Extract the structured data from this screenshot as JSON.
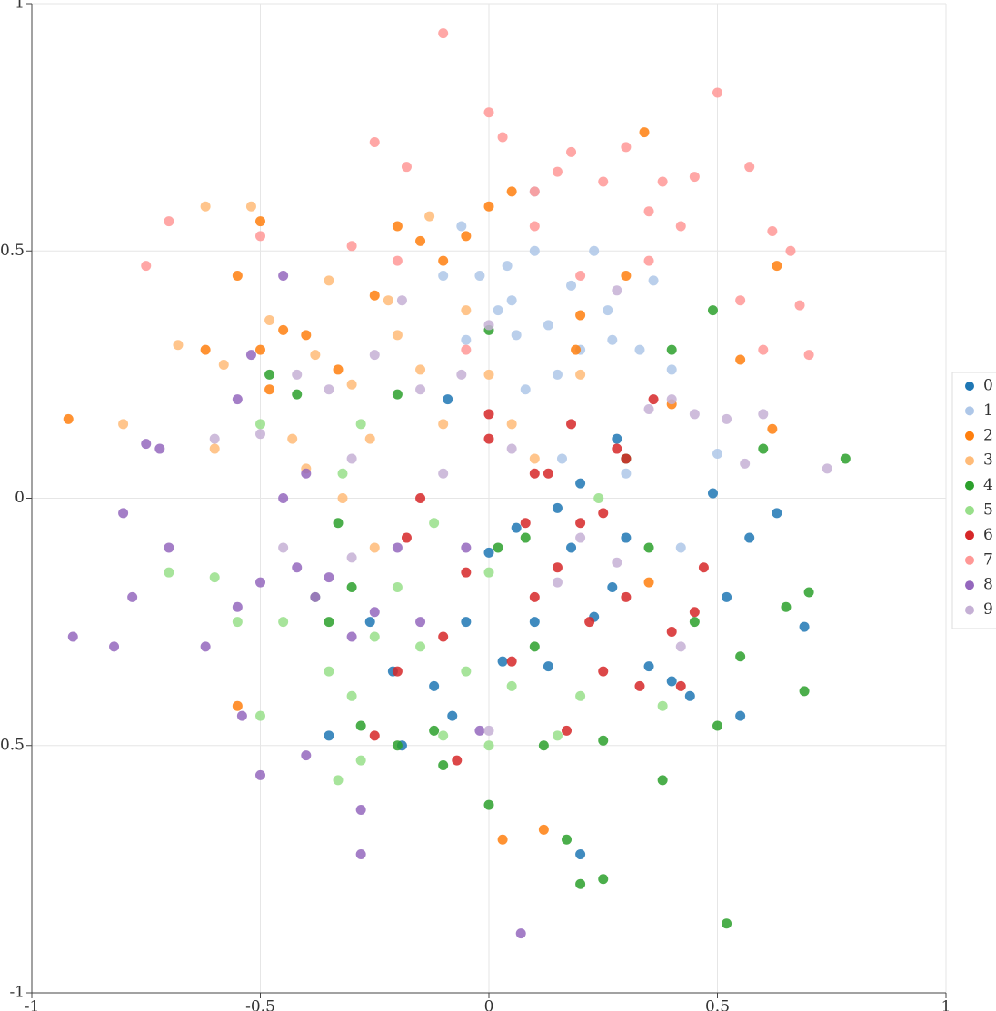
{
  "chart_data": {
    "type": "scatter",
    "xlim": [
      -1,
      1
    ],
    "ylim": [
      -1,
      1
    ],
    "xticks": [
      -1,
      -0.5,
      0,
      0.5,
      1
    ],
    "yticks": [
      -1,
      -0.5,
      0,
      0.5,
      1
    ],
    "grid": true,
    "legend": "right",
    "series": [
      {
        "name": "0",
        "color": "#1f77b4",
        "x": [
          -0.35,
          -0.26,
          -0.21,
          -0.19,
          -0.12,
          -0.08,
          -0.05,
          0.0,
          0.03,
          0.06,
          0.1,
          0.13,
          0.15,
          0.18,
          0.2,
          0.23,
          0.27,
          0.3,
          0.35,
          0.4,
          0.44,
          0.49,
          0.52,
          0.55,
          0.57,
          0.63,
          0.69,
          0.2,
          -0.09,
          0.28
        ],
        "values": [
          -0.48,
          -0.25,
          -0.35,
          -0.5,
          -0.38,
          -0.44,
          -0.25,
          -0.11,
          -0.33,
          -0.06,
          -0.25,
          -0.34,
          -0.02,
          -0.1,
          0.03,
          -0.24,
          -0.18,
          -0.08,
          -0.34,
          -0.37,
          -0.4,
          0.01,
          -0.2,
          -0.44,
          -0.08,
          -0.03,
          -0.26,
          -0.72,
          0.2,
          0.12
        ]
      },
      {
        "name": "1",
        "color": "#aec7e8",
        "x": [
          -0.02,
          0.05,
          0.1,
          0.13,
          0.18,
          0.2,
          0.06,
          0.02,
          -0.05,
          0.1,
          0.23,
          0.27,
          0.33,
          0.36,
          0.4,
          0.08,
          -0.1,
          -0.06,
          0.15,
          0.3,
          0.42,
          0.5,
          0.16,
          0.04,
          0.26
        ],
        "values": [
          0.45,
          0.4,
          0.5,
          0.35,
          0.43,
          0.3,
          0.33,
          0.38,
          0.32,
          0.62,
          0.5,
          0.32,
          0.3,
          0.44,
          0.26,
          0.22,
          0.45,
          0.55,
          0.25,
          0.05,
          -0.1,
          0.09,
          0.08,
          0.47,
          0.38
        ]
      },
      {
        "name": "2",
        "color": "#ff7f0e",
        "x": [
          -0.92,
          -0.55,
          -0.5,
          -0.45,
          -0.5,
          -0.4,
          -0.33,
          -0.25,
          -0.2,
          -0.15,
          -0.1,
          -0.05,
          0.0,
          0.05,
          0.2,
          0.3,
          0.34,
          0.4,
          0.55,
          0.63,
          -0.62,
          -0.55,
          0.03,
          0.12,
          -0.48,
          0.19,
          0.62,
          0.35
        ],
        "values": [
          0.16,
          0.45,
          0.56,
          0.34,
          0.3,
          0.33,
          0.26,
          0.41,
          0.55,
          0.52,
          0.48,
          0.53,
          0.59,
          0.62,
          0.37,
          0.45,
          0.74,
          0.19,
          0.28,
          0.47,
          0.3,
          -0.42,
          -0.69,
          -0.67,
          0.22,
          0.3,
          0.14,
          -0.17
        ]
      },
      {
        "name": "3",
        "color": "#ffbb78",
        "x": [
          -0.8,
          -0.68,
          -0.62,
          -0.58,
          -0.52,
          -0.48,
          -0.43,
          -0.35,
          -0.3,
          -0.26,
          -0.2,
          -0.15,
          -0.1,
          -0.05,
          0.0,
          0.05,
          -0.6,
          -0.38,
          -0.22,
          -0.13,
          -0.4,
          -0.25,
          0.1,
          0.2,
          -0.32
        ],
        "values": [
          0.15,
          0.31,
          0.59,
          0.27,
          0.59,
          0.36,
          0.12,
          0.44,
          0.23,
          0.12,
          0.33,
          0.26,
          0.15,
          0.38,
          0.25,
          0.15,
          0.1,
          0.29,
          0.4,
          0.57,
          0.06,
          -0.1,
          0.08,
          0.25,
          0.0
        ]
      },
      {
        "name": "4",
        "color": "#2ca02c",
        "x": [
          -0.48,
          -0.42,
          -0.33,
          -0.35,
          -0.3,
          -0.28,
          -0.2,
          -0.12,
          -0.1,
          0.0,
          0.02,
          0.08,
          0.1,
          0.12,
          0.17,
          0.2,
          0.25,
          0.25,
          0.3,
          0.35,
          0.38,
          0.4,
          0.45,
          0.5,
          0.52,
          0.55,
          0.6,
          0.65,
          0.7,
          0.78,
          0.69,
          0.49,
          -0.2,
          0.0
        ],
        "values": [
          0.25,
          0.21,
          -0.05,
          -0.25,
          -0.18,
          -0.46,
          -0.5,
          -0.47,
          -0.54,
          -0.62,
          -0.1,
          -0.08,
          -0.3,
          -0.5,
          -0.69,
          -0.78,
          -0.77,
          -0.49,
          0.08,
          -0.1,
          -0.57,
          0.3,
          -0.25,
          -0.46,
          -0.86,
          -0.32,
          0.1,
          -0.22,
          -0.19,
          0.08,
          -0.39,
          0.38,
          0.21,
          0.34
        ]
      },
      {
        "name": "5",
        "color": "#98df8a",
        "x": [
          -0.7,
          -0.6,
          -0.55,
          -0.5,
          -0.45,
          -0.38,
          -0.35,
          -0.33,
          -0.3,
          -0.28,
          -0.25,
          -0.2,
          -0.15,
          -0.1,
          -0.05,
          0.0,
          0.0,
          0.05,
          0.15,
          0.2,
          -0.32,
          -0.28,
          -0.12,
          0.24,
          0.38,
          -0.5
        ],
        "values": [
          -0.15,
          -0.16,
          -0.25,
          0.15,
          -0.25,
          -0.2,
          -0.35,
          -0.57,
          -0.4,
          -0.53,
          -0.28,
          -0.18,
          -0.3,
          -0.48,
          -0.35,
          -0.15,
          -0.5,
          -0.38,
          -0.48,
          -0.4,
          0.05,
          0.15,
          -0.05,
          0.0,
          -0.42,
          -0.44
        ]
      },
      {
        "name": "6",
        "color": "#d62728",
        "x": [
          0.0,
          0.08,
          0.1,
          0.13,
          0.15,
          0.18,
          0.2,
          0.22,
          0.25,
          0.28,
          0.3,
          0.33,
          0.36,
          0.4,
          0.42,
          0.45,
          0.47,
          0.05,
          0.0,
          -0.05,
          -0.1,
          -0.15,
          -0.18,
          -0.2,
          -0.25,
          -0.07,
          0.17,
          0.3,
          0.25,
          0.1
        ],
        "values": [
          0.17,
          -0.05,
          -0.2,
          0.05,
          -0.14,
          0.15,
          -0.05,
          -0.25,
          -0.35,
          0.1,
          -0.2,
          -0.38,
          0.2,
          -0.27,
          -0.38,
          -0.23,
          -0.14,
          -0.33,
          0.12,
          -0.15,
          -0.28,
          0.0,
          -0.08,
          -0.35,
          -0.48,
          -0.53,
          -0.47,
          0.08,
          -0.03,
          0.05
        ]
      },
      {
        "name": "7",
        "color": "#ff9896",
        "x": [
          -0.75,
          -0.7,
          -0.5,
          -0.3,
          -0.25,
          -0.18,
          -0.2,
          -0.1,
          0.0,
          0.03,
          0.1,
          0.15,
          0.18,
          0.25,
          0.3,
          0.35,
          0.38,
          0.42,
          0.45,
          0.5,
          0.55,
          0.57,
          0.6,
          0.62,
          0.66,
          0.68,
          0.7,
          0.2,
          0.1,
          -0.05,
          0.35
        ],
        "values": [
          0.47,
          0.56,
          0.53,
          0.51,
          0.72,
          0.67,
          0.48,
          0.94,
          0.78,
          0.73,
          0.62,
          0.66,
          0.7,
          0.64,
          0.71,
          0.58,
          0.64,
          0.55,
          0.65,
          0.82,
          0.4,
          0.67,
          0.3,
          0.54,
          0.5,
          0.39,
          0.29,
          0.45,
          0.55,
          0.3,
          0.48
        ]
      },
      {
        "name": "8",
        "color": "#9467bd",
        "x": [
          -0.91,
          -0.82,
          -0.8,
          -0.75,
          -0.72,
          -0.78,
          -0.7,
          -0.62,
          -0.55,
          -0.5,
          -0.5,
          -0.45,
          -0.42,
          -0.4,
          -0.38,
          -0.35,
          -0.3,
          -0.28,
          -0.28,
          -0.25,
          -0.2,
          -0.15,
          -0.05,
          0.07,
          -0.55,
          -0.52,
          -0.45,
          -0.4,
          -0.54,
          -0.02
        ],
        "values": [
          -0.28,
          -0.3,
          -0.03,
          0.11,
          0.1,
          -0.2,
          -0.1,
          -0.3,
          -0.22,
          -0.17,
          -0.56,
          0.0,
          -0.14,
          0.05,
          -0.2,
          -0.16,
          -0.28,
          -0.63,
          -0.72,
          -0.23,
          -0.1,
          -0.25,
          -0.1,
          -0.88,
          0.2,
          0.29,
          0.45,
          -0.52,
          -0.44,
          -0.47
        ]
      },
      {
        "name": "9",
        "color": "#c5b0d5",
        "x": [
          -0.6,
          -0.5,
          -0.42,
          -0.35,
          -0.3,
          -0.25,
          -0.19,
          -0.15,
          -0.1,
          -0.06,
          0.0,
          0.05,
          0.15,
          0.2,
          0.28,
          0.35,
          0.4,
          0.45,
          0.52,
          0.56,
          0.6,
          0.74,
          0.42,
          -0.45,
          -0.3,
          0.0,
          0.28
        ],
        "values": [
          0.12,
          0.13,
          0.25,
          0.22,
          0.08,
          0.29,
          0.4,
          0.22,
          0.05,
          0.25,
          0.35,
          0.1,
          -0.17,
          -0.08,
          -0.13,
          0.18,
          0.2,
          0.17,
          0.16,
          0.07,
          0.17,
          0.06,
          -0.3,
          -0.1,
          -0.12,
          -0.47,
          0.42
        ]
      }
    ]
  }
}
